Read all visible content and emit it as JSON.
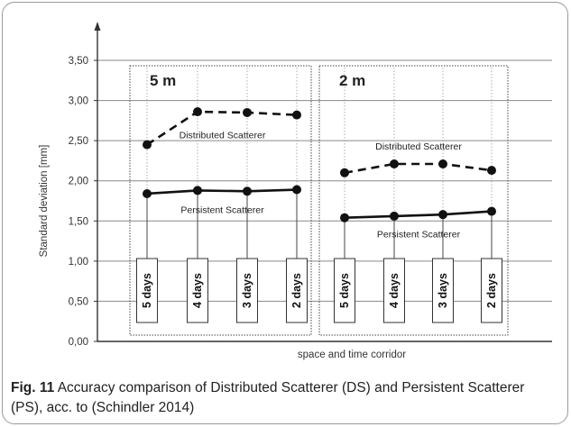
{
  "chart_data": {
    "type": "line",
    "xlabel": "space and time corridor",
    "ylabel": "Standard deviation [mm]",
    "ylim": [
      0,
      3.5
    ],
    "yticks": [
      "0,00",
      "0,50",
      "1,00",
      "1,50",
      "2,00",
      "2,50",
      "3,00",
      "3,50"
    ],
    "grid": true,
    "panels": [
      {
        "title": "5 m",
        "categories": [
          "5 days",
          "4 days",
          "3 days",
          "2 days"
        ],
        "series": [
          {
            "name": "Distributed Scatterer",
            "style": "dashed",
            "values": [
              2.45,
              2.86,
              2.85,
              2.82
            ]
          },
          {
            "name": "Persistent Scatterer",
            "style": "solid",
            "values": [
              1.84,
              1.88,
              1.87,
              1.89
            ]
          }
        ]
      },
      {
        "title": "2 m",
        "categories": [
          "5 days",
          "4 days",
          "3 days",
          "2 days"
        ],
        "series": [
          {
            "name": "Distributed Scatterer",
            "style": "dashed",
            "values": [
              2.1,
              2.21,
              2.21,
              2.13
            ]
          },
          {
            "name": "Persistent Scatterer",
            "style": "solid",
            "values": [
              1.54,
              1.56,
              1.58,
              1.62
            ]
          }
        ]
      }
    ]
  },
  "caption": {
    "label": "Fig. 11",
    "text": "Accuracy comparison of Distributed Scatterer (DS) and Persistent Scatterer (PS), acc. to (Schindler 2014)"
  }
}
